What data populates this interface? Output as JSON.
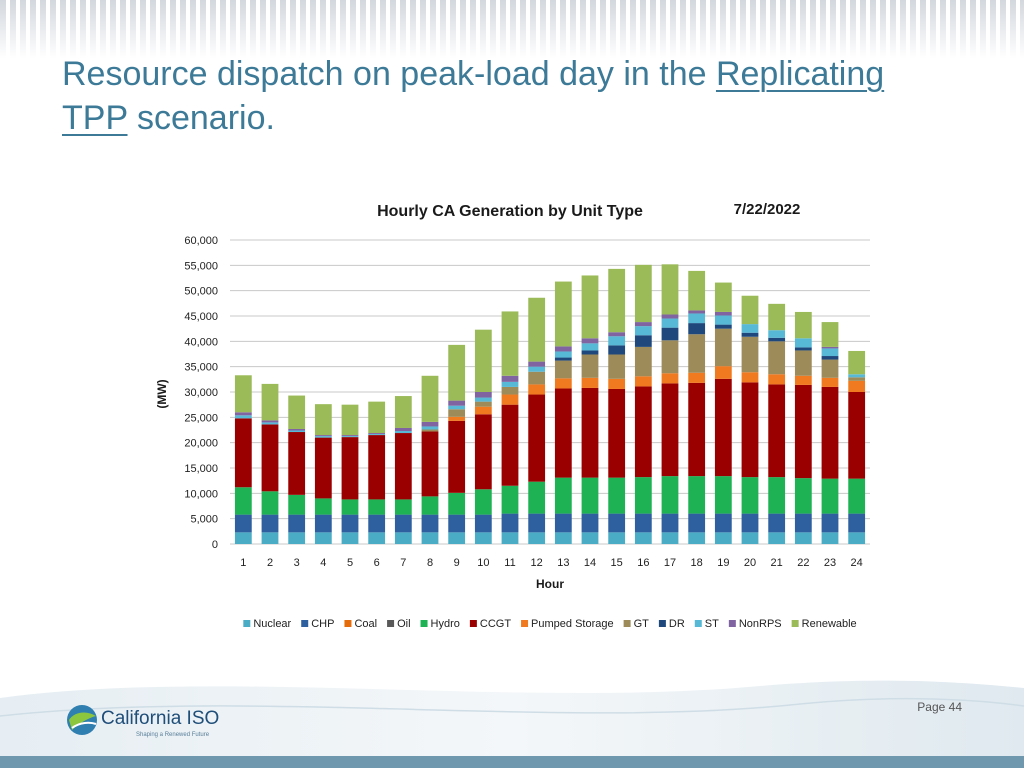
{
  "slide": {
    "title_part1": "Resource dispatch on peak-load day in the ",
    "title_link1": "Replicating",
    "title_link2": "TPP",
    "title_part2": " scenario.",
    "page_label": "Page 44",
    "logo_name": "California ISO",
    "logo_tagline": "Shaping a Renewed Future"
  },
  "colors": {
    "title": "#3c7a98",
    "grid": "#c8c8c8"
  },
  "chart_data": {
    "type": "bar",
    "stacked": true,
    "title": "Hourly CA Generation by Unit Type",
    "date_label": "7/22/2022",
    "xlabel": "Hour",
    "ylabel": "(MW)",
    "ylim": [
      0,
      60000
    ],
    "yticks": [
      0,
      5000,
      10000,
      15000,
      20000,
      25000,
      30000,
      35000,
      40000,
      45000,
      50000,
      55000,
      60000
    ],
    "ytick_labels": [
      "0",
      "5,000",
      "10,000",
      "15,000",
      "20,000",
      "25,000",
      "30,000",
      "35,000",
      "40,000",
      "45,000",
      "50,000",
      "55,000",
      "60,000"
    ],
    "grid": true,
    "legend_position": "bottom",
    "categories": [
      "1",
      "2",
      "3",
      "4",
      "5",
      "6",
      "7",
      "8",
      "9",
      "10",
      "11",
      "12",
      "13",
      "14",
      "15",
      "16",
      "17",
      "18",
      "19",
      "20",
      "21",
      "22",
      "23",
      "24"
    ],
    "series": [
      {
        "name": "Nuclear",
        "color": "#4bacc6",
        "values": [
          2300,
          2300,
          2300,
          2300,
          2300,
          2300,
          2300,
          2300,
          2300,
          2300,
          2300,
          2300,
          2300,
          2300,
          2300,
          2300,
          2300,
          2300,
          2300,
          2300,
          2300,
          2300,
          2300,
          2300
        ]
      },
      {
        "name": "CHP",
        "color": "#2e5f9e",
        "values": [
          3500,
          3500,
          3500,
          3500,
          3500,
          3500,
          3500,
          3500,
          3500,
          3500,
          3700,
          3700,
          3700,
          3700,
          3700,
          3700,
          3700,
          3700,
          3700,
          3700,
          3700,
          3700,
          3700,
          3700
        ]
      },
      {
        "name": "Coal",
        "color": "#e46c0a",
        "values": [
          0,
          0,
          0,
          0,
          0,
          0,
          0,
          0,
          0,
          0,
          0,
          0,
          0,
          0,
          0,
          0,
          0,
          0,
          0,
          0,
          0,
          0,
          0,
          0
        ]
      },
      {
        "name": "Oil",
        "color": "#595959",
        "values": [
          0,
          0,
          0,
          0,
          0,
          0,
          0,
          0,
          0,
          0,
          0,
          0,
          0,
          0,
          0,
          0,
          0,
          0,
          0,
          0,
          0,
          0,
          0,
          0
        ]
      },
      {
        "name": "Hydro",
        "color": "#1fb255",
        "values": [
          5400,
          4600,
          3900,
          3200,
          3000,
          3000,
          3000,
          3600,
          4300,
          5000,
          5500,
          6300,
          7100,
          7100,
          7100,
          7200,
          7400,
          7400,
          7400,
          7200,
          7200,
          7000,
          6900,
          6900
        ]
      },
      {
        "name": "CCGT",
        "color": "#9b0000",
        "values": [
          13600,
          13200,
          12400,
          12000,
          12300,
          12700,
          13100,
          12800,
          14200,
          14800,
          16000,
          17200,
          17600,
          17700,
          17500,
          17900,
          18300,
          18400,
          19200,
          18700,
          18300,
          18400,
          18100,
          17100
        ]
      },
      {
        "name": "Pumped Storage",
        "color": "#f07a1f",
        "values": [
          0,
          0,
          0,
          0,
          0,
          0,
          0,
          0,
          800,
          1500,
          2000,
          2000,
          2000,
          2000,
          2000,
          2000,
          2000,
          2000,
          2500,
          2000,
          2000,
          1800,
          1800,
          2200
        ]
      },
      {
        "name": "GT",
        "color": "#9e8b5a",
        "values": [
          0,
          0,
          0,
          0,
          0,
          0,
          0,
          400,
          1500,
          1000,
          1500,
          2500,
          3500,
          4600,
          4800,
          5800,
          6500,
          7600,
          7400,
          7000,
          6500,
          5000,
          3600,
          700
        ]
      },
      {
        "name": "DR",
        "color": "#1f497d",
        "values": [
          0,
          0,
          0,
          0,
          0,
          0,
          0,
          0,
          0,
          0,
          0,
          0,
          600,
          800,
          1800,
          2300,
          2500,
          2200,
          800,
          800,
          700,
          600,
          700,
          0
        ]
      },
      {
        "name": "ST",
        "color": "#57b9d6",
        "values": [
          600,
          400,
          300,
          300,
          200,
          200,
          400,
          600,
          700,
          800,
          1000,
          1000,
          1200,
          1400,
          1800,
          1800,
          1800,
          1900,
          1800,
          1700,
          1500,
          1800,
          1500,
          600
        ]
      },
      {
        "name": "NonRPS",
        "color": "#8064a2",
        "values": [
          600,
          400,
          300,
          200,
          200,
          200,
          600,
          900,
          1000,
          1100,
          1200,
          1000,
          1000,
          1000,
          800,
          800,
          800,
          600,
          700,
          0,
          0,
          0,
          300,
          0
        ]
      },
      {
        "name": "Renewable",
        "color": "#9bbb59",
        "values": [
          7300,
          7200,
          6600,
          6100,
          6000,
          6200,
          6300,
          9100,
          11000,
          12300,
          12700,
          12600,
          12800,
          12400,
          12500,
          11300,
          9900,
          7800,
          5800,
          5600,
          5200,
          5200,
          4900,
          4600
        ]
      }
    ]
  }
}
